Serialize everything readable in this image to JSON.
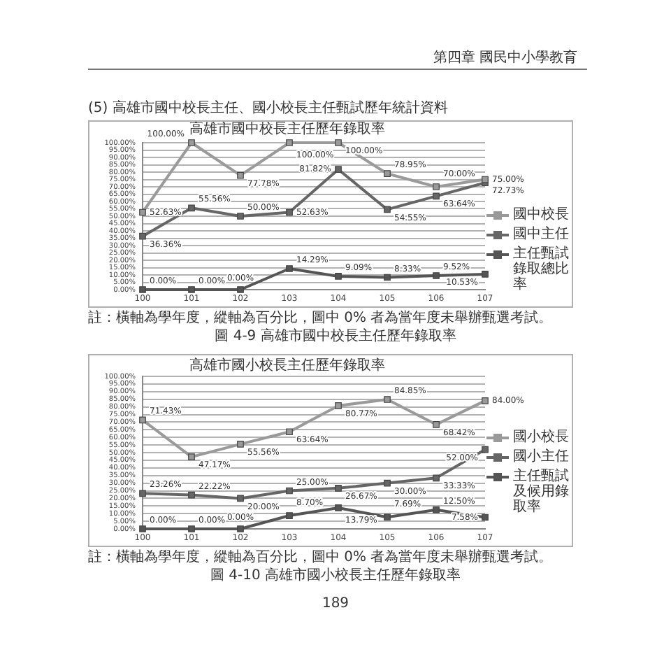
{
  "chart_data": [
    {
      "type": "line",
      "title": "高雄市國中校長主任歷年錄取率",
      "categories": [
        "100",
        "101",
        "102",
        "103",
        "104",
        "105",
        "106",
        "107"
      ],
      "series": [
        {
          "name": "國中校長",
          "color": "#9a9a9a",
          "values": [
            52.63,
            100,
            77.78,
            100,
            100,
            78.95,
            70.0,
            75.0
          ],
          "value_labels": [
            "52.63%",
            "100.00%",
            "77.78%",
            "100.00%",
            "100.00%",
            "78.95%",
            "70.00%",
            "75.00%"
          ]
        },
        {
          "name": "國中主任",
          "color": "#666666",
          "values": [
            36.36,
            55.56,
            50.0,
            52.63,
            81.82,
            54.55,
            63.64,
            72.73
          ],
          "value_labels": [
            "36.36%",
            "55.56%",
            "50.00%",
            "52.63%",
            "81.82%",
            "54.55%",
            "63.64%",
            "72.73%"
          ]
        },
        {
          "name": "主任甄試錄取總比率",
          "color": "#555555",
          "values": [
            0,
            0,
            0,
            14.29,
            9.09,
            8.33,
            9.52,
            10.53
          ],
          "value_labels": [
            "0.00%",
            "0.00%",
            "0.00%",
            "14.29%",
            "9.09%",
            "8.33%",
            "9.52%",
            "10.53%"
          ]
        }
      ],
      "ylim": [
        0,
        100
      ],
      "yticks": [
        {
          "value": 0,
          "label": "0.00%"
        },
        {
          "value": 5,
          "label": "5.00%"
        },
        {
          "value": 10,
          "label": "10.00%"
        },
        {
          "value": 15,
          "label": "15.00%"
        },
        {
          "value": 20,
          "label": "20.00%"
        },
        {
          "value": 25,
          "label": "25.00%"
        },
        {
          "value": 30,
          "label": "30.00%"
        },
        {
          "value": 35,
          "label": "35.00%"
        },
        {
          "value": 40,
          "label": "40.00%"
        },
        {
          "value": 45,
          "label": "45.00%"
        },
        {
          "value": 50,
          "label": "50.00%"
        },
        {
          "value": 55,
          "label": "55.00%"
        },
        {
          "value": 60,
          "label": "60.00%"
        },
        {
          "value": 65,
          "label": "65.00%"
        },
        {
          "value": 70,
          "label": "70.00%"
        },
        {
          "value": 75,
          "label": "75.00%"
        },
        {
          "value": 80,
          "label": "80.00%"
        },
        {
          "value": 85,
          "label": "85.00%"
        },
        {
          "value": 90,
          "label": "90.00%"
        },
        {
          "value": 95,
          "label": "95.00%"
        },
        {
          "value": 100,
          "label": "100.00%"
        }
      ],
      "grid": "y",
      "legend": "right",
      "marker": "square",
      "annotations": [
        "第四章 國民中小學教育",
        "(5) 高雄市國中校長主任、國小校長主任甄試歷年統計資料",
        "註：橫軸為學年度，縱軸為百分比，圖中 0% 者為當年度未舉辦甄選考試。",
        "圖 4-9 高雄市國中校長主任歷年錄取率"
      ]
    },
    {
      "type": "line",
      "title": "高雄市國小校長主任歷年錄取率",
      "categories": [
        "100",
        "101",
        "102",
        "103",
        "104",
        "105",
        "106",
        "107"
      ],
      "series": [
        {
          "name": "國小校長",
          "color": "#9a9a9a",
          "values": [
            71.43,
            47.17,
            55.56,
            63.64,
            80.77,
            84.85,
            68.42,
            84.0
          ],
          "value_labels": [
            "71.43%",
            "47.17%",
            "55.56%",
            "63.64%",
            "80.77%",
            "84.85%",
            "68.42%",
            "84.00%"
          ]
        },
        {
          "name": "國小主任",
          "color": "#666666",
          "values": [
            23.26,
            22.22,
            20.0,
            25.0,
            26.67,
            30.0,
            33.33,
            52.0
          ],
          "value_labels": [
            "23.26%",
            "22.22%",
            "20.00%",
            "25.00%",
            "26.67%",
            "30.00%",
            "33.33%",
            "52.00%"
          ]
        },
        {
          "name": "主任甄試及候用錄取率",
          "color": "#555555",
          "values": [
            0,
            0,
            0,
            8.7,
            13.79,
            7.69,
            12.5,
            7.58
          ],
          "value_labels": [
            "0.00%",
            "0.00%",
            "0.00%",
            "8.70%",
            "13.79%",
            "7.69%",
            "12.50%",
            "7.58%"
          ]
        }
      ],
      "ylim": [
        0,
        100
      ],
      "yticks": [
        {
          "value": 0,
          "label": "0.00%"
        },
        {
          "value": 5,
          "label": "5.00%"
        },
        {
          "value": 10,
          "label": "10.00%"
        },
        {
          "value": 15,
          "label": "15.00%"
        },
        {
          "value": 20,
          "label": "20.00%"
        },
        {
          "value": 25,
          "label": "25.00%"
        },
        {
          "value": 30,
          "label": "30.00%"
        },
        {
          "value": 35,
          "label": "35.00%"
        },
        {
          "value": 40,
          "label": "40.00%"
        },
        {
          "value": 45,
          "label": "45.00%"
        },
        {
          "value": 50,
          "label": "50.00%"
        },
        {
          "value": 55,
          "label": "55.00%"
        },
        {
          "value": 60,
          "label": "60.00%"
        },
        {
          "value": 65,
          "label": "65.00%"
        },
        {
          "value": 70,
          "label": "70.00%"
        },
        {
          "value": 75,
          "label": "75.00%"
        },
        {
          "value": 80,
          "label": "80.00%"
        },
        {
          "value": 85,
          "label": "85.00%"
        },
        {
          "value": 90,
          "label": "90.00%"
        },
        {
          "value": 95,
          "label": "95.00%"
        },
        {
          "value": 100,
          "label": "100.00%"
        }
      ],
      "grid": "y",
      "legend": "right",
      "marker": "square",
      "annotations": [
        "註：橫軸為學年度，縱軸為百分比，圖中 0% 者為當年度未舉辦甄選考試。",
        "圖 4-10 高雄市國小校長主任歷年錄取率",
        "189"
      ]
    }
  ]
}
